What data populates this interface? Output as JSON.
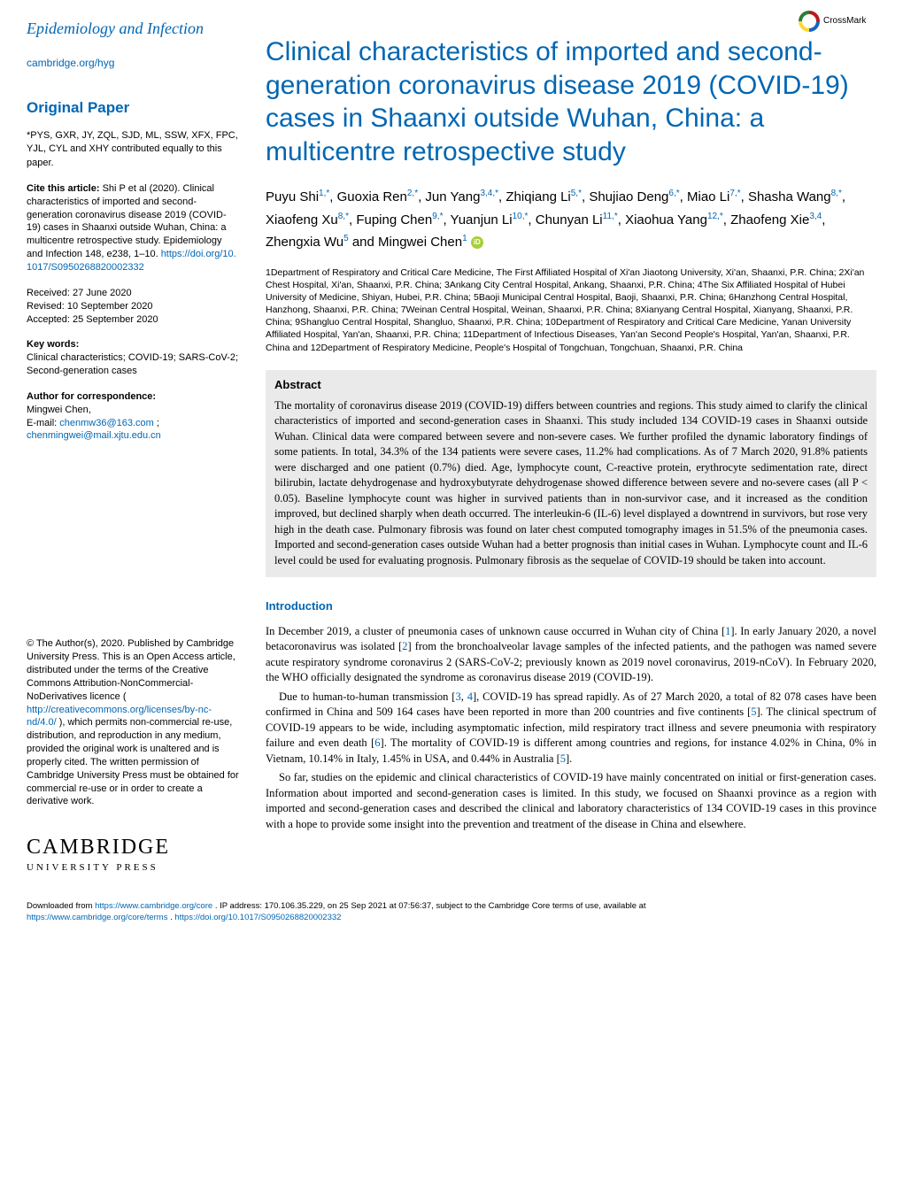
{
  "colors": {
    "primary": "#0066b3",
    "abstract_bg": "#eaeaea",
    "text": "#000000",
    "orcid": "#a6ce39"
  },
  "left": {
    "journal_title": "Epidemiology and Infection",
    "journal_link": "cambridge.org/hyg",
    "paper_type": "Original Paper",
    "contrib_note": "*PYS, GXR, JY, ZQL, SJD, ML, SSW, XFX, FPC, YJL, CYL and XHY contributed equally to this paper.",
    "cite_label": "Cite this article:",
    "cite_text": "Shi P et al (2020). Clinical characteristics of imported and second-generation coronavirus disease 2019 (COVID-19) cases in Shaanxi outside Wuhan, China: a multicentre retrospective study. Epidemiology and Infection 148, e238, 1–10. ",
    "doi": "https://doi.org/10.1017/S0950268820002332",
    "received": "Received: 27 June 2020",
    "revised": "Revised: 10 September 2020",
    "accepted": "Accepted: 25 September 2020",
    "keywords_label": "Key words:",
    "keywords": "Clinical characteristics; COVID-19; SARS-CoV-2; Second-generation cases",
    "corr_label": "Author for correspondence:",
    "corr_name": "Mingwei Chen,",
    "corr_email_label": "E-mail: ",
    "corr_email1": "chenmw36@163.com",
    "corr_email_sep": "; ",
    "corr_email2": "chenmingwei@mail.xjtu.edu.cn",
    "copyright": "© The Author(s), 2020. Published by Cambridge University Press. This is an Open Access article, distributed under the terms of the Creative Commons Attribution-NonCommercial-NoDerivatives licence (",
    "cc_link": "http://creativecommons.org/licenses/by-nc-nd/4.0/",
    "copyright_tail": "), which permits non-commercial re-use, distribution, and reproduction in any medium, provided the original work is unaltered and is properly cited. The written permission of Cambridge University Press must be obtained for commercial re-use or in order to create a derivative work.",
    "press_name": "CAMBRIDGE",
    "press_sub": "UNIVERSITY PRESS"
  },
  "crossmark_label": "CrossMark",
  "article_title": "Clinical characteristics of imported and second-generation coronavirus disease 2019 (COVID-19) cases in Shaanxi outside Wuhan, China: a multicentre retrospective study",
  "authors_html": "Puyu Shi<sup class='aff-link'>1,</sup><sup class='star'>*</sup>, Guoxia Ren<sup class='aff-link'>2,</sup><sup class='star'>*</sup>, Jun Yang<sup class='aff-link'>3,4,</sup><sup class='star'>*</sup>, Zhiqiang Li<sup class='aff-link'>5,</sup><sup class='star'>*</sup>, Shujiao Deng<sup class='aff-link'>6,</sup><sup class='star'>*</sup>, Miao Li<sup class='aff-link'>7,</sup><sup class='star'>*</sup>, Shasha Wang<sup class='aff-link'>8,</sup><sup class='star'>*</sup>, Xiaofeng Xu<sup class='aff-link'>8,</sup><sup class='star'>*</sup>, Fuping Chen<sup class='aff-link'>9,</sup><sup class='star'>*</sup>, Yuanjun Li<sup class='aff-link'>10,</sup><sup class='star'>*</sup>, Chunyan Li<sup class='aff-link'>11,</sup><sup class='star'>*</sup>, Xiaohua Yang<sup class='aff-link'>12,</sup><sup class='star'>*</sup>, Zhaofeng Xie<sup class='aff-link'>3,4</sup>, Zhengxia Wu<sup class='aff-link'>5</sup> and Mingwei Chen<sup class='aff-link'>1</sup>",
  "affiliations": "1Department of Respiratory and Critical Care Medicine, The First Affiliated Hospital of Xi'an Jiaotong University, Xi'an, Shaanxi, P.R. China; 2Xi'an Chest Hospital, Xi'an, Shaanxi, P.R. China; 3Ankang City Central Hospital, Ankang, Shaanxi, P.R. China; 4The Six Affiliated Hospital of Hubei University of Medicine, Shiyan, Hubei, P.R. China; 5Baoji Municipal Central Hospital, Baoji, Shaanxi, P.R. China; 6Hanzhong Central Hospital, Hanzhong, Shaanxi, P.R. China; 7Weinan Central Hospital, Weinan, Shaanxi, P.R. China; 8Xianyang Central Hospital, Xianyang, Shaanxi, P.R. China; 9Shangluo Central Hospital, Shangluo, Shaanxi, P.R. China; 10Department of Respiratory and Critical Care Medicine, Yanan University Affiliated Hospital, Yan'an, Shaanxi, P.R. China; 11Department of Infectious Diseases, Yan'an Second People's Hospital, Yan'an, Shaanxi, P.R. China and 12Department of Respiratory Medicine, People's Hospital of Tongchuan, Tongchuan, Shaanxi, P.R. China",
  "abstract_label": "Abstract",
  "abstract_text": "The mortality of coronavirus disease 2019 (COVID-19) differs between countries and regions. This study aimed to clarify the clinical characteristics of imported and second-generation cases in Shaanxi. This study included 134 COVID-19 cases in Shaanxi outside Wuhan. Clinical data were compared between severe and non-severe cases. We further profiled the dynamic laboratory findings of some patients. In total, 34.3% of the 134 patients were severe cases, 11.2% had complications. As of 7 March 2020, 91.8% patients were discharged and one patient (0.7%) died. Age, lymphocyte count, C-reactive protein, erythrocyte sedimentation rate, direct bilirubin, lactate dehydrogenase and hydroxybutyrate dehydrogenase showed difference between severe and no-severe cases (all P < 0.05). Baseline lymphocyte count was higher in survived patients than in non-survivor case, and it increased as the condition improved, but declined sharply when death occurred. The interleukin-6 (IL-6) level displayed a downtrend in survivors, but rose very high in the death case. Pulmonary fibrosis was found on later chest computed tomography images in 51.5% of the pneumonia cases. Imported and second-generation cases outside Wuhan had a better prognosis than initial cases in Wuhan. Lymphocyte count and IL-6 level could be used for evaluating prognosis. Pulmonary fibrosis as the sequelae of COVID-19 should be taken into account.",
  "intro_label": "Introduction",
  "intro_p1_a": "In December 2019, a cluster of pneumonia cases of unknown cause occurred in Wuhan city of China [",
  "intro_p1_b": "]. In early January 2020, a novel betacoronavirus was isolated [",
  "intro_p1_c": "] from the bronchoalveolar lavage samples of the infected patients, and the pathogen was named severe acute respiratory syndrome coronavirus 2 (SARS-CoV-2; previously known as 2019 novel coronavirus, 2019-nCoV). In February 2020, the WHO officially designated the syndrome as coronavirus disease 2019 (COVID-19).",
  "intro_p2_a": "Due to human-to-human transmission [",
  "intro_p2_b": ", ",
  "intro_p2_c": "], COVID-19 has spread rapidly. As of 27 March 2020, a total of 82 078 cases have been confirmed in China and 509 164 cases have been reported in more than 200 countries and five continents [",
  "intro_p2_d": "]. The clinical spectrum of COVID-19 appears to be wide, including asymptomatic infection, mild respiratory tract illness and severe pneumonia with respiratory failure and even death [",
  "intro_p2_e": "]. The mortality of COVID-19 is different among countries and regions, for instance 4.02% in China, 0% in Vietnam, 10.14% in Italy, 1.45% in USA, and 0.44% in Australia [",
  "intro_p2_f": "].",
  "intro_p3": "So far, studies on the epidemic and clinical characteristics of COVID-19 have mainly concentrated on initial or first-generation cases. Information about imported and second-generation cases is limited. In this study, we focused on Shaanxi province as a region with imported and second-generation cases and described the clinical and laboratory characteristics of 134 COVID-19 cases in this province with a hope to provide some insight into the prevention and treatment of the disease in China and elsewhere.",
  "refs": {
    "r1": "1",
    "r2": "2",
    "r3": "3",
    "r4": "4",
    "r5": "5",
    "r6": "6"
  },
  "footer": {
    "prefix": "Downloaded from ",
    "core_link": "https://www.cambridge.org/core",
    "ip_text": ". IP address: 170.106.35.229, on 25 Sep 2021 at 07:56:37, subject to the Cambridge Core terms of use, available at ",
    "terms_link": "https://www.cambridge.org/core/terms",
    "sep": ". ",
    "doi_link": "https://doi.org/10.1017/S0950268820002332"
  }
}
